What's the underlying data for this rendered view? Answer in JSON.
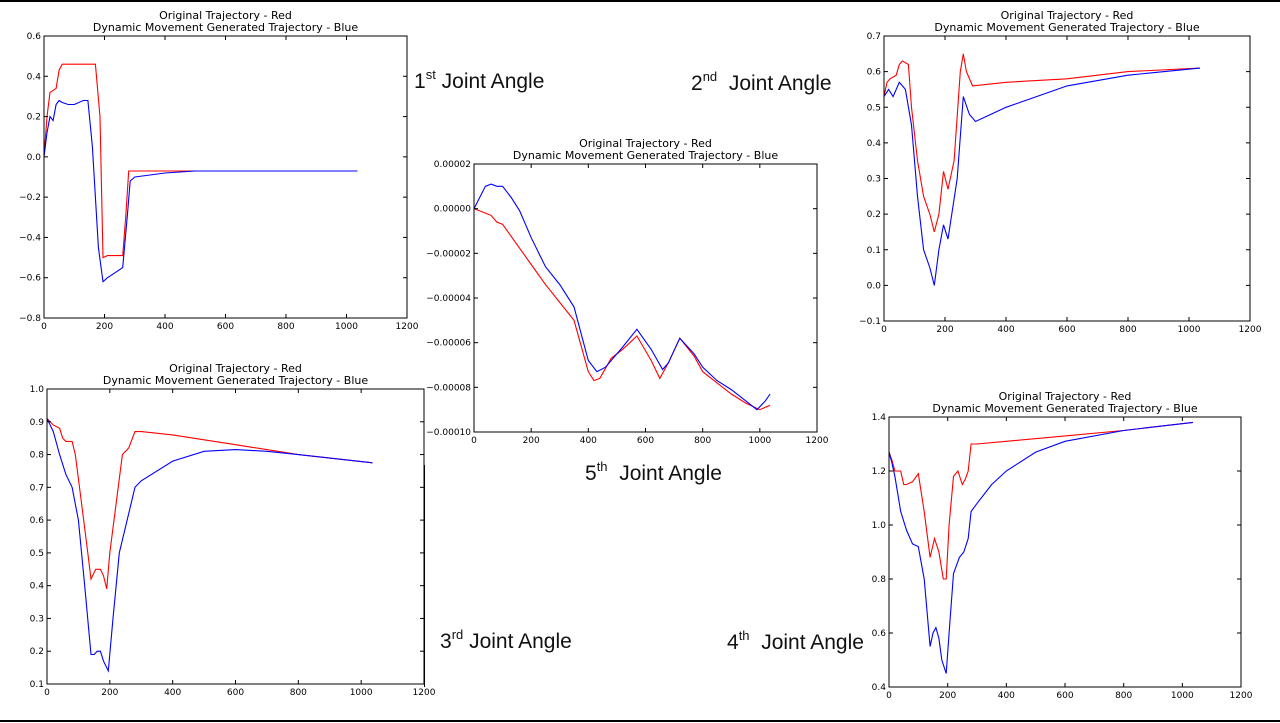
{
  "captions": [
    {
      "ord": "1",
      "sup": "st",
      "text": " Joint Angle"
    },
    {
      "ord": "2",
      "sup": "nd",
      "text": "  Joint Angle"
    },
    {
      "ord": "5",
      "sup": "th",
      "text": "  Joint Angle"
    },
    {
      "ord": "3",
      "sup": "rd",
      "text": " Joint Angle"
    },
    {
      "ord": "4",
      "sup": "th",
      "text": "  Joint Angle"
    }
  ],
  "chart_data": [
    {
      "type": "line",
      "title": "Original Trajectory - Red",
      "subtitle": "Dynamic Movement Generated Trajectory - Blue",
      "xlim": [
        0,
        1200
      ],
      "ylim": [
        -0.8,
        0.6
      ],
      "xticks": [
        "0",
        "200",
        "400",
        "600",
        "800",
        "1000",
        "1200"
      ],
      "yticks": [
        "−0.8",
        "−0.6",
        "−0.4",
        "−0.2",
        "0.0",
        "0.2",
        "0.4",
        "0.6"
      ],
      "grid": false,
      "series": [
        {
          "color": "#ff0000",
          "x": [
            0,
            10,
            20,
            30,
            40,
            50,
            60,
            80,
            100,
            130,
            150,
            170,
            185,
            195,
            210,
            230,
            250,
            260,
            270,
            280,
            300,
            400,
            600,
            800,
            1036
          ],
          "y": [
            0,
            0.2,
            0.32,
            0.33,
            0.34,
            0.43,
            0.46,
            0.46,
            0.46,
            0.46,
            0.46,
            0.46,
            0.2,
            -0.5,
            -0.49,
            -0.49,
            -0.49,
            -0.49,
            -0.3,
            -0.07,
            -0.07,
            -0.07,
            -0.07,
            -0.07,
            -0.07
          ]
        },
        {
          "color": "#0000ff",
          "x": [
            0,
            10,
            20,
            30,
            40,
            50,
            60,
            80,
            100,
            130,
            145,
            160,
            180,
            195,
            210,
            230,
            260,
            275,
            285,
            300,
            350,
            400,
            500,
            600,
            800,
            1036
          ],
          "y": [
            0,
            0.12,
            0.2,
            0.18,
            0.26,
            0.28,
            0.27,
            0.26,
            0.26,
            0.28,
            0.28,
            0.05,
            -0.45,
            -0.62,
            -0.6,
            -0.58,
            -0.55,
            -0.3,
            -0.12,
            -0.1,
            -0.09,
            -0.08,
            -0.07,
            -0.07,
            -0.07,
            -0.07
          ]
        }
      ]
    },
    {
      "type": "line",
      "title": "Original Trajectory - Red",
      "subtitle": "Dynamic Movement Generated Trajectory - Blue",
      "xlim": [
        0,
        1200
      ],
      "ylim": [
        -0.1,
        0.7
      ],
      "xticks": [
        "0",
        "200",
        "400",
        "600",
        "800",
        "1000",
        "1200"
      ],
      "yticks": [
        "−0.1",
        "0.0",
        "0.1",
        "0.2",
        "0.3",
        "0.4",
        "0.5",
        "0.6",
        "0.7"
      ],
      "grid": false,
      "series": [
        {
          "color": "#ff0000",
          "x": [
            0,
            10,
            20,
            40,
            50,
            60,
            80,
            90,
            110,
            130,
            150,
            165,
            180,
            195,
            210,
            230,
            250,
            260,
            270,
            290,
            400,
            600,
            800,
            1036
          ],
          "y": [
            0.53,
            0.57,
            0.58,
            0.59,
            0.62,
            0.63,
            0.62,
            0.5,
            0.35,
            0.25,
            0.2,
            0.15,
            0.2,
            0.32,
            0.27,
            0.35,
            0.6,
            0.65,
            0.6,
            0.56,
            0.57,
            0.58,
            0.6,
            0.61
          ]
        },
        {
          "color": "#0000ff",
          "x": [
            0,
            15,
            30,
            50,
            70,
            90,
            110,
            130,
            150,
            165,
            180,
            195,
            210,
            240,
            260,
            280,
            300,
            350,
            400,
            500,
            600,
            800,
            1036
          ],
          "y": [
            0.53,
            0.55,
            0.53,
            0.57,
            0.55,
            0.45,
            0.25,
            0.1,
            0.05,
            0.0,
            0.1,
            0.17,
            0.13,
            0.3,
            0.53,
            0.48,
            0.46,
            0.48,
            0.5,
            0.53,
            0.56,
            0.59,
            0.61
          ]
        }
      ]
    },
    {
      "type": "line",
      "title": "Original Trajectory - Red",
      "subtitle": "Dynamic Movement Generated Trajectory - Blue",
      "xlim": [
        0,
        1200
      ],
      "ylim": [
        -0.0001,
        2e-05
      ],
      "xticks": [
        "0",
        "200",
        "400",
        "600",
        "800",
        "1000",
        "1200"
      ],
      "yticks": [
        "−0.00010",
        "−0.00008",
        "−0.00006",
        "−0.00004",
        "−0.00002",
        "0.00000",
        "0.00002"
      ],
      "grid": false,
      "series": [
        {
          "color": "#ff0000",
          "x": [
            0,
            20,
            40,
            60,
            80,
            100,
            150,
            200,
            250,
            300,
            350,
            400,
            420,
            440,
            480,
            520,
            570,
            620,
            650,
            680,
            720,
            770,
            800,
            850,
            900,
            950,
            1000,
            1036
          ],
          "y": [
            0,
            -1e-06,
            -2e-06,
            -3e-06,
            -6e-06,
            -7e-06,
            -1.6e-05,
            -2.5e-05,
            -3.4e-05,
            -4.2e-05,
            -5e-05,
            -7.3e-05,
            -7.7e-05,
            -7.6e-05,
            -6.7e-05,
            -6.3e-05,
            -5.7e-05,
            -6.8e-05,
            -7.6e-05,
            -6.9e-05,
            -5.8e-05,
            -6.6e-05,
            -7.3e-05,
            -7.8e-05,
            -8.3e-05,
            -8.7e-05,
            -9e-05,
            -8.8e-05
          ]
        },
        {
          "color": "#0000ff",
          "x": [
            0,
            20,
            40,
            60,
            80,
            100,
            130,
            160,
            200,
            250,
            300,
            350,
            400,
            430,
            460,
            520,
            570,
            620,
            660,
            680,
            720,
            770,
            800,
            850,
            900,
            950,
            990,
            1020,
            1036
          ],
          "y": [
            0,
            5e-06,
            1e-05,
            1.1e-05,
            1e-05,
            1e-05,
            5e-06,
            -1e-06,
            -1.3e-05,
            -2.6e-05,
            -3.4e-05,
            -4.4e-05,
            -6.8e-05,
            -7.3e-05,
            -7.1e-05,
            -6.2e-05,
            -5.4e-05,
            -6.3e-05,
            -7.2e-05,
            -6.9e-05,
            -5.8e-05,
            -6.5e-05,
            -7.1e-05,
            -7.7e-05,
            -8.1e-05,
            -8.6e-05,
            -9e-05,
            -8.6e-05,
            -8.3e-05
          ]
        }
      ]
    },
    {
      "type": "line",
      "title": "Original Trajectory - Red",
      "subtitle": "Dynamic Movement Generated Trajectory - Blue",
      "xlim": [
        0,
        1200
      ],
      "ylim": [
        0.1,
        1.0
      ],
      "xticks": [
        "0",
        "200",
        "400",
        "600",
        "800",
        "1000",
        "1200"
      ],
      "yticks": [
        "0.1",
        "0.2",
        "0.3",
        "0.4",
        "0.5",
        "0.6",
        "0.7",
        "0.8",
        "0.9",
        "1.0"
      ],
      "grid": false,
      "series": [
        {
          "color": "#ff0000",
          "x": [
            0,
            20,
            40,
            50,
            60,
            80,
            90,
            110,
            130,
            140,
            155,
            170,
            180,
            190,
            200,
            220,
            240,
            260,
            280,
            300,
            400,
            600,
            800,
            1036
          ],
          "y": [
            0.91,
            0.89,
            0.88,
            0.85,
            0.84,
            0.84,
            0.8,
            0.65,
            0.5,
            0.42,
            0.45,
            0.45,
            0.43,
            0.39,
            0.5,
            0.65,
            0.8,
            0.82,
            0.87,
            0.87,
            0.86,
            0.83,
            0.8,
            0.775
          ]
        },
        {
          "color": "#0000ff",
          "x": [
            0,
            20,
            40,
            60,
            80,
            100,
            120,
            140,
            150,
            160,
            170,
            180,
            195,
            210,
            230,
            260,
            280,
            300,
            400,
            500,
            600,
            700,
            800,
            1036
          ],
          "y": [
            0.91,
            0.87,
            0.8,
            0.74,
            0.7,
            0.6,
            0.4,
            0.19,
            0.19,
            0.2,
            0.2,
            0.17,
            0.14,
            0.3,
            0.5,
            0.62,
            0.7,
            0.72,
            0.78,
            0.81,
            0.815,
            0.81,
            0.8,
            0.775
          ]
        }
      ]
    },
    {
      "type": "line",
      "title": "Original Trajectory - Red",
      "subtitle": "Dynamic Movement Generated Trajectory - Blue",
      "xlim": [
        0,
        1200
      ],
      "ylim": [
        0.4,
        1.4
      ],
      "xticks": [
        "0",
        "200",
        "400",
        "600",
        "800",
        "1000",
        "1200"
      ],
      "yticks": [
        "0.4",
        "0.6",
        "0.8",
        "1.0",
        "1.2",
        "1.4"
      ],
      "grid": false,
      "series": [
        {
          "color": "#ff0000",
          "x": [
            0,
            10,
            20,
            40,
            50,
            60,
            80,
            100,
            120,
            140,
            155,
            170,
            185,
            195,
            205,
            220,
            235,
            250,
            260,
            270,
            280,
            300,
            400,
            600,
            800,
            1036
          ],
          "y": [
            1.27,
            1.24,
            1.2,
            1.2,
            1.15,
            1.15,
            1.16,
            1.19,
            1.05,
            0.88,
            0.95,
            0.9,
            0.8,
            0.8,
            1.0,
            1.18,
            1.2,
            1.15,
            1.17,
            1.2,
            1.3,
            1.3,
            1.31,
            1.33,
            1.35,
            1.38
          ]
        },
        {
          "color": "#0000ff",
          "x": [
            0,
            10,
            20,
            40,
            60,
            80,
            100,
            120,
            140,
            150,
            160,
            170,
            180,
            195,
            205,
            220,
            240,
            255,
            270,
            280,
            300,
            350,
            400,
            500,
            600,
            800,
            1036
          ],
          "y": [
            1.27,
            1.23,
            1.18,
            1.05,
            0.98,
            0.93,
            0.92,
            0.8,
            0.55,
            0.6,
            0.62,
            0.58,
            0.5,
            0.45,
            0.6,
            0.82,
            0.88,
            0.9,
            0.95,
            1.05,
            1.08,
            1.15,
            1.2,
            1.27,
            1.31,
            1.35,
            1.38
          ]
        }
      ]
    }
  ]
}
